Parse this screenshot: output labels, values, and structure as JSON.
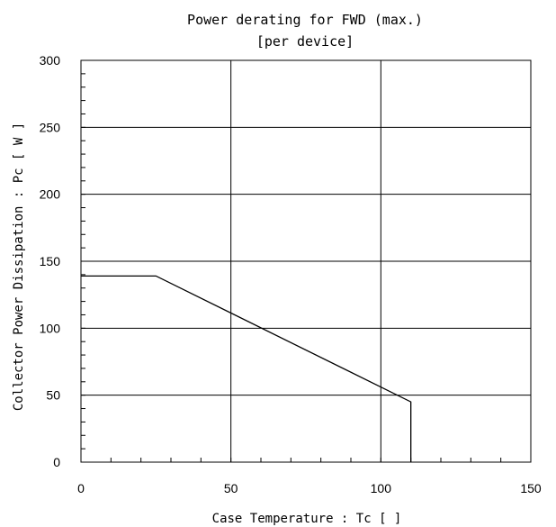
{
  "chart_data": {
    "type": "line",
    "title": "Power derating for FWD (max.)",
    "subtitle": "[per device]",
    "xlabel": "Case Temperature : Tc [    ]",
    "ylabel": "Collector Power Dissipation : Pc [ W ]",
    "xlim": [
      0,
      150
    ],
    "ylim": [
      0,
      300
    ],
    "x_ticks": [
      0,
      50,
      100,
      150
    ],
    "y_ticks": [
      0,
      50,
      100,
      150,
      200,
      250,
      300
    ],
    "x_tick_labels": [
      "0",
      "50",
      "100",
      "150"
    ],
    "y_tick_labels": [
      "0",
      "50",
      "100",
      "150",
      "200",
      "250",
      "300"
    ],
    "x_minor_step": 10,
    "y_minor_step": 10,
    "grid": true,
    "series": [
      {
        "x": [
          0,
          25,
          110,
          110
        ],
        "y": [
          139,
          139,
          45,
          0
        ],
        "color": "#000000"
      }
    ]
  }
}
